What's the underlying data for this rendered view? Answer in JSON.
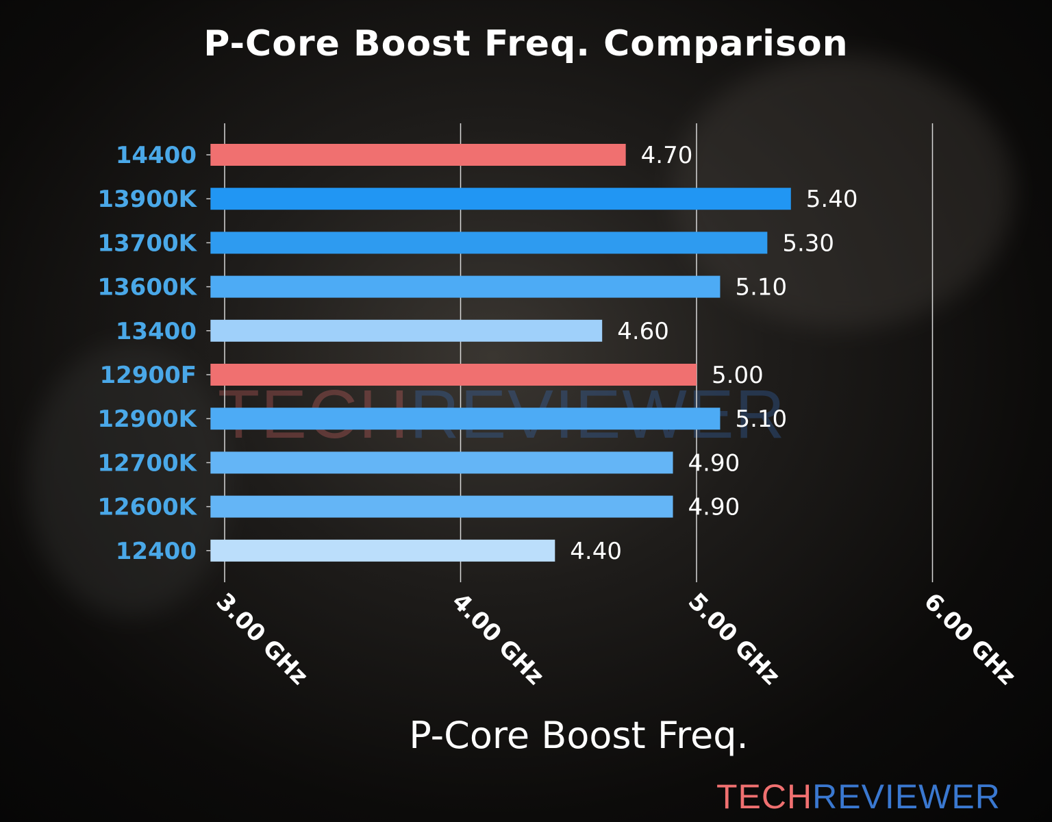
{
  "chart_data": {
    "type": "bar",
    "orientation": "horizontal",
    "title": "P-Core Boost Freq. Comparison",
    "xlabel": "P-Core Boost Freq.",
    "ylabel": "",
    "categories": [
      "14400",
      "13900K",
      "13700K",
      "13600K",
      "13400",
      "12900F",
      "12900K",
      "12700K",
      "12600K",
      "12400"
    ],
    "values": [
      4.7,
      5.4,
      5.3,
      5.1,
      4.6,
      5.0,
      5.1,
      4.9,
      4.9,
      4.4
    ],
    "data_labels": [
      "4.70",
      "5.40",
      "5.30",
      "5.10",
      "4.60",
      "5.00",
      "5.10",
      "4.90",
      "4.90",
      "4.40"
    ],
    "bar_colors": [
      "#f07070",
      "#2196f3",
      "#2e9bf0",
      "#4dabf5",
      "#9fd0fa",
      "#f07070",
      "#4dabf5",
      "#64b5f6",
      "#64b5f6",
      "#bbdefb"
    ],
    "xticks": [
      3,
      4,
      5,
      6
    ],
    "xtick_labels": [
      "3.00 GHz",
      "4.00 GHz",
      "5.00 GHz",
      "6.00 GHz"
    ],
    "xlim": [
      2.94,
      6.0
    ],
    "grid": "vertical",
    "category_label_color": "#4aa8e8"
  },
  "watermark": {
    "part1": "TECH",
    "part2": "REVIEWER",
    "color1": "#f07070",
    "color2": "#3a78d0"
  }
}
